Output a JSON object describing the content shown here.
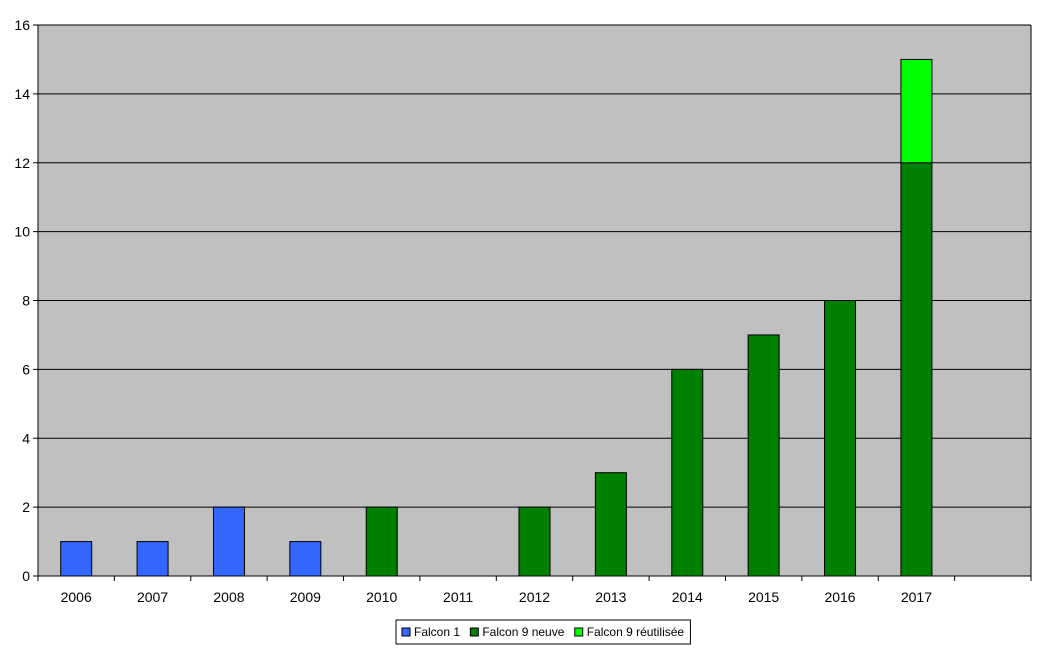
{
  "chart_data": {
    "type": "bar",
    "stacked": true,
    "title": "",
    "xlabel": "",
    "ylabel": "",
    "ylim": [
      0,
      16
    ],
    "yticks": [
      0,
      2,
      4,
      6,
      8,
      10,
      12,
      14,
      16
    ],
    "grid": true,
    "legend_position": "bottom",
    "background_color": "#c0c0c0",
    "categories": [
      "2006",
      "2007",
      "2008",
      "2009",
      "2010",
      "2011",
      "2012",
      "2013",
      "2014",
      "2015",
      "2016",
      "2017",
      ""
    ],
    "series": [
      {
        "name": "Falcon 1",
        "color": "#3366ff",
        "values": [
          1,
          1,
          2,
          1,
          0,
          0,
          0,
          0,
          0,
          0,
          0,
          0,
          0
        ]
      },
      {
        "name": "Falcon 9 neuve",
        "color": "#008000",
        "values": [
          0,
          0,
          0,
          0,
          2,
          0,
          2,
          3,
          6,
          7,
          8,
          12,
          0
        ]
      },
      {
        "name": "Falcon 9 réutilisée",
        "color": "#00ff00",
        "values": [
          0,
          0,
          0,
          0,
          0,
          0,
          0,
          0,
          0,
          0,
          0,
          3,
          0
        ]
      }
    ]
  }
}
